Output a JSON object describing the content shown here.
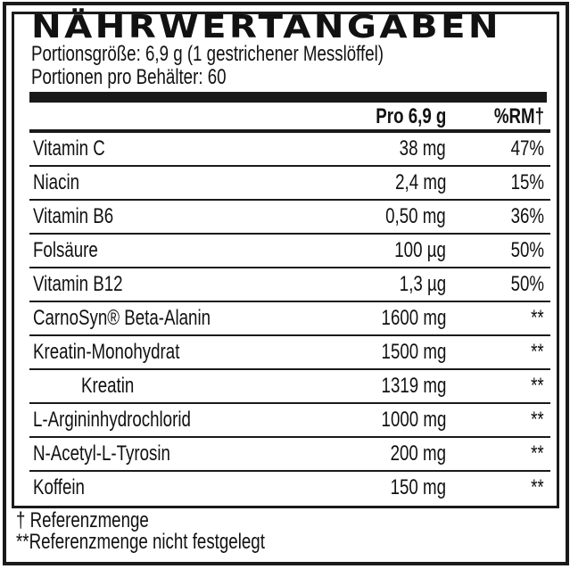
{
  "title": "NÄHRWERTANGABEN",
  "serving_size": "Portionsgröße: 6,9 g (1 gestrichener Messlöffel)",
  "servings_per_container": "Portionen pro Behälter: 60",
  "table": {
    "headers": {
      "amount": "Pro 6,9 g",
      "percent": "%RM†"
    },
    "rows": [
      {
        "name": "Vitamin C",
        "amount": "38 mg",
        "percent": "47%"
      },
      {
        "name": "Niacin",
        "amount": "2,4 mg",
        "percent": "15%"
      },
      {
        "name": "Vitamin B6",
        "amount": "0,50 mg",
        "percent": "36%"
      },
      {
        "name": "Folsäure",
        "amount": "100 µg",
        "percent": "50%"
      },
      {
        "name": "Vitamin B12",
        "amount": "1,3 µg",
        "percent": "50%"
      },
      {
        "name": "CarnoSyn® Beta-Alanin",
        "amount": "1600 mg",
        "percent": "**"
      },
      {
        "name": "Kreatin-Monohydrat",
        "amount": "1500 mg",
        "percent": "**"
      },
      {
        "name": "Kreatin",
        "amount": "1319 mg",
        "percent": "**"
      },
      {
        "name": "L-Argininhydrochlorid",
        "amount": "1000 mg",
        "percent": "**"
      },
      {
        "name": "N-Acetyl-L-Tyrosin",
        "amount": "200 mg",
        "percent": "**"
      },
      {
        "name": "Koffein",
        "amount": "150 mg",
        "percent": "**"
      }
    ]
  },
  "footnotes": [
    "† Referenzmenge",
    "**Referenzmenge nicht festgelegt"
  ]
}
